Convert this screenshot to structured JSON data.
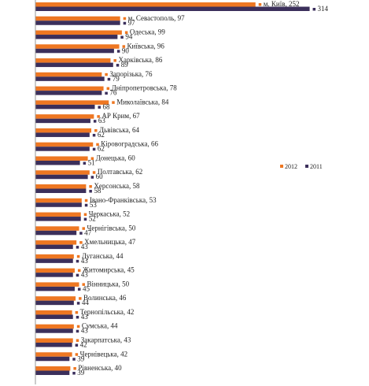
{
  "chart_data": {
    "type": "bar",
    "orientation": "horizontal",
    "grid": false,
    "legend_position": "right",
    "xlim": [
      0,
      330
    ],
    "colors": {
      "2012": "#ee7722",
      "2011": "#3b2f5b"
    },
    "legend": [
      {
        "key": "2012",
        "label": "2012"
      },
      {
        "key": "2011",
        "label": "2011"
      }
    ],
    "categories": [
      "м. Київ",
      "м. Севастополь",
      "Одеська",
      "Київська",
      "Харківська",
      "Запорізька",
      "Дніпропетровська",
      "Миколаївська",
      "АР Крим",
      "Львівська",
      "Кіровоградська",
      "Донецька",
      "Полтавська",
      "Херсонська",
      "Івано-Франківська",
      "Черкаська",
      "Чернігівська",
      "Хмельницька",
      "Луганська",
      "Житомирська",
      "Вінницька",
      "Волинська",
      "Тернопільська",
      "Сумська",
      "Закарпатська",
      "Чернівецька",
      "Рівненська"
    ],
    "series": [
      {
        "name": "2012",
        "values": [
          252,
          97,
          99,
          96,
          86,
          76,
          78,
          84,
          67,
          64,
          66,
          60,
          62,
          58,
          53,
          52,
          50,
          47,
          44,
          45,
          50,
          46,
          42,
          44,
          43,
          42,
          40
        ]
      },
      {
        "name": "2011",
        "values": [
          314,
          97,
          94,
          90,
          89,
          79,
          76,
          68,
          63,
          62,
          62,
          51,
          60,
          58,
          53,
          52,
          47,
          43,
          43,
          43,
          45,
          44,
          43,
          43,
          42,
          39,
          39
        ]
      }
    ]
  }
}
